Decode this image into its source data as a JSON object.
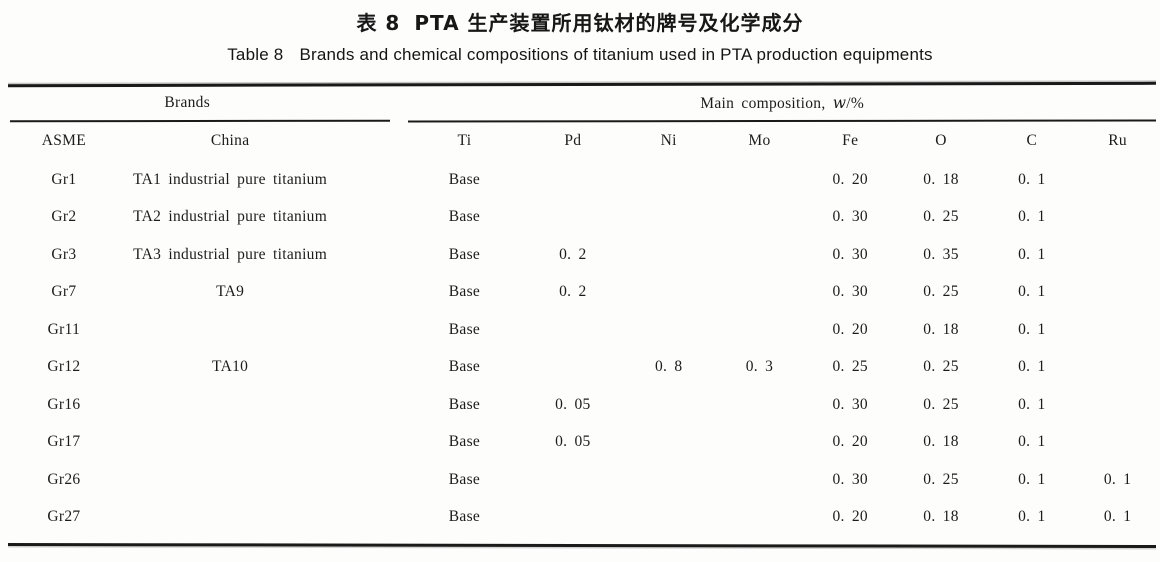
{
  "page": {
    "caption_cn_label": "表 8",
    "caption_cn_text": "PTA 生产装置所用钛材的牌号及化学成分",
    "caption_en_label": "Table 8",
    "caption_en_text": "Brands and chemical compositions of titanium used in PTA production equipments"
  },
  "table": {
    "group_headers": {
      "brands": "Brands",
      "composition_prefix": "Main composition,",
      "composition_symbol": "w",
      "composition_suffix": "/%"
    },
    "columns": [
      "ASME",
      "China",
      "Ti",
      "Pd",
      "Ni",
      "Mo",
      "Fe",
      "O",
      "C",
      "Ru"
    ],
    "rows": [
      [
        "Gr1",
        "TA1 industrial pure titanium",
        "Base",
        "",
        "",
        "",
        "0. 20",
        "0. 18",
        "0. 1",
        ""
      ],
      [
        "Gr2",
        "TA2 industrial pure titanium",
        "Base",
        "",
        "",
        "",
        "0. 30",
        "0. 25",
        "0. 1",
        ""
      ],
      [
        "Gr3",
        "TA3 industrial pure titanium",
        "Base",
        "0. 2",
        "",
        "",
        "0. 30",
        "0. 35",
        "0. 1",
        ""
      ],
      [
        "Gr7",
        "TA9",
        "Base",
        "0. 2",
        "",
        "",
        "0. 30",
        "0. 25",
        "0. 1",
        ""
      ],
      [
        "Gr11",
        "",
        "Base",
        "",
        "",
        "",
        "0. 20",
        "0. 18",
        "0. 1",
        ""
      ],
      [
        "Gr12",
        "TA10",
        "Base",
        "",
        "0. 8",
        "0. 3",
        "0. 25",
        "0. 25",
        "0. 1",
        ""
      ],
      [
        "Gr16",
        "",
        "Base",
        "0. 05",
        "",
        "",
        "0. 30",
        "0. 25",
        "0. 1",
        ""
      ],
      [
        "Gr17",
        "",
        "Base",
        "0. 05",
        "",
        "",
        "0. 20",
        "0. 18",
        "0. 1",
        ""
      ],
      [
        "Gr26",
        "",
        "Base",
        "",
        "",
        "",
        "0. 30",
        "0. 25",
        "0. 1",
        "0. 1"
      ],
      [
        "Gr27",
        "",
        "Base",
        "",
        "",
        "",
        "0. 20",
        "0. 18",
        "0. 1",
        "0. 1"
      ]
    ]
  },
  "colors": {
    "ink": "#1a1a1a",
    "paper": "#fdfdfc"
  }
}
